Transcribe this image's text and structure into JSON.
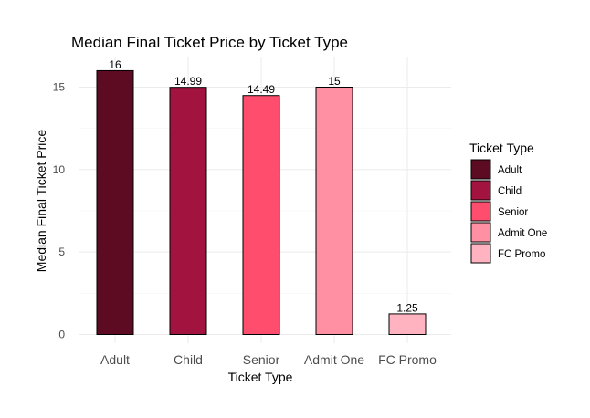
{
  "chart_data": {
    "type": "bar",
    "title": "Median Final Ticket Price by Ticket Type",
    "xlabel": "Ticket Type",
    "ylabel": "Median Final Ticket Price",
    "categories": [
      "Adult",
      "Child",
      "Senior",
      "Admit One",
      "FC Promo"
    ],
    "values": [
      16,
      14.99,
      14.49,
      15,
      1.25
    ],
    "value_labels": [
      "16",
      "14.99",
      "14.49",
      "15",
      "1.25"
    ],
    "colors": [
      "#5C0B23",
      "#A2143F",
      "#FF4D6D",
      "#FF8FA3",
      "#FFB3C1"
    ],
    "ylim": [
      0,
      16.8
    ],
    "yticks": [
      0,
      5,
      10,
      15
    ],
    "ytick_labels": [
      "0",
      "5",
      "10",
      "15"
    ],
    "grid": true,
    "legend": {
      "title": "Ticket Type",
      "position": "right",
      "entries": [
        "Adult",
        "Child",
        "Senior",
        "Admit One",
        "FC Promo"
      ]
    }
  }
}
